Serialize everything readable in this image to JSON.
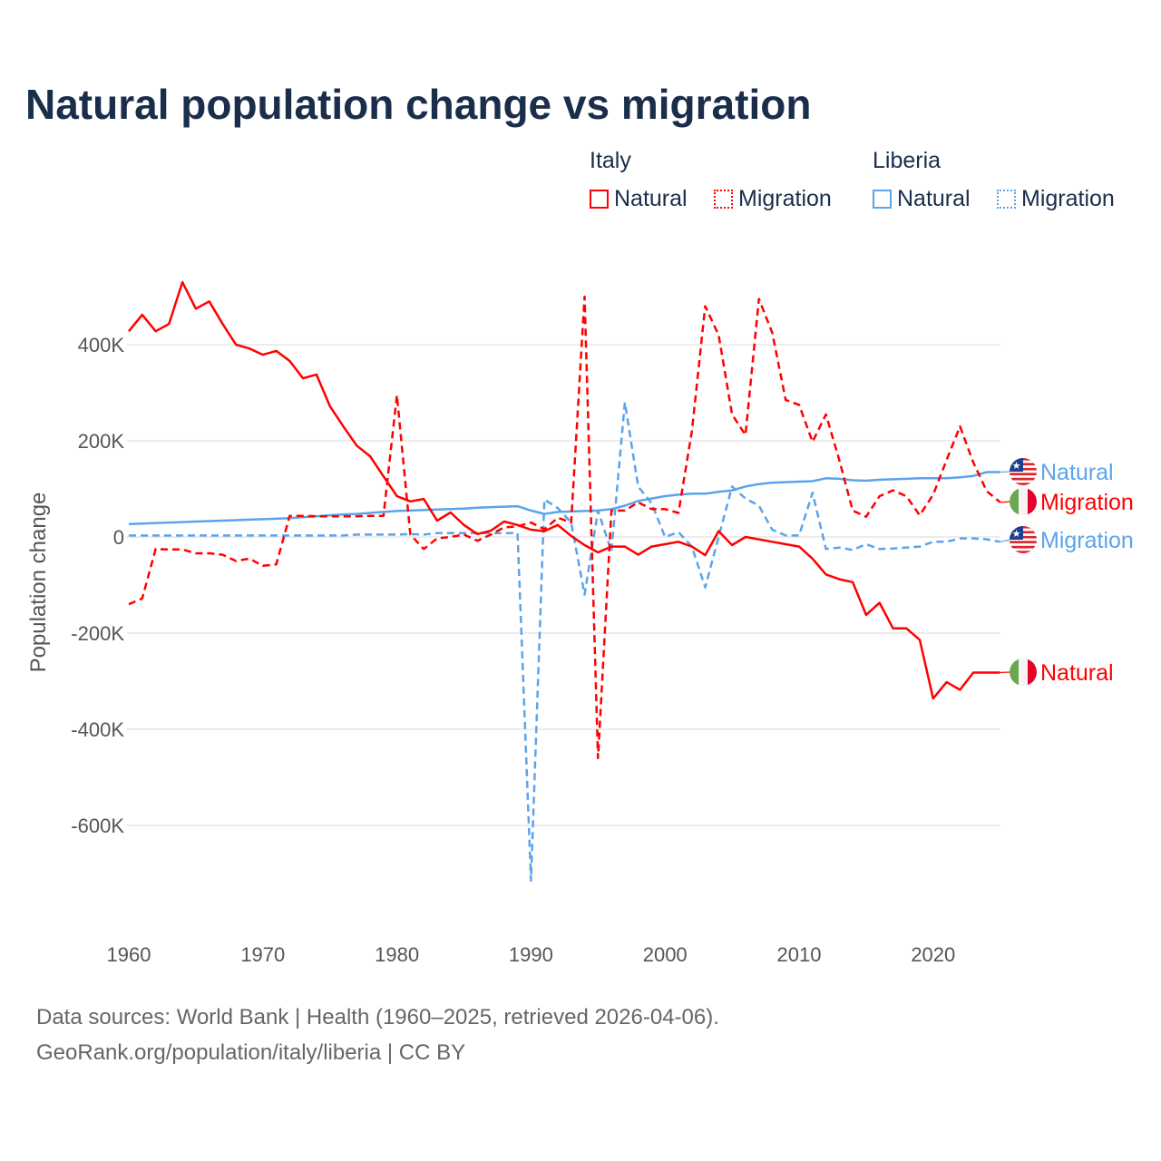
{
  "title": "Natural population change vs migration",
  "legend": {
    "groups": [
      {
        "name": "Italy",
        "items": [
          {
            "label": "Natural",
            "style": "solid"
          },
          {
            "label": "Migration",
            "style": "dotted"
          }
        ],
        "color": "#ff0000"
      },
      {
        "name": "Liberia",
        "items": [
          {
            "label": "Natural",
            "style": "solid"
          },
          {
            "label": "Migration",
            "style": "dotted"
          }
        ],
        "color": "#5aa4ec"
      }
    ]
  },
  "footer": {
    "line1": "Data sources: World Bank | Health (1960–2025, retrieved 2026-04-06).",
    "line2": "GeoRank.org/population/italy/liberia | CC BY"
  },
  "chart_data": {
    "type": "line",
    "title": "Natural population change vs migration",
    "xlabel": "",
    "ylabel": "Population change",
    "xlim": [
      1960,
      2025
    ],
    "ylim": [
      -750,
      550
    ],
    "y_unit": "thousands",
    "x_ticks": [
      1960,
      1970,
      1980,
      1990,
      2000,
      2010,
      2020
    ],
    "y_ticks": [
      {
        "v": 400,
        "label": "400K"
      },
      {
        "v": 200,
        "label": "200K"
      },
      {
        "v": 0,
        "label": "0"
      },
      {
        "v": -200,
        "label": "-200K"
      },
      {
        "v": -400,
        "label": "-400K"
      },
      {
        "v": -600,
        "label": "-600K"
      }
    ],
    "grid": true,
    "x": [
      1960,
      1961,
      1962,
      1963,
      1964,
      1965,
      1966,
      1967,
      1968,
      1969,
      1970,
      1971,
      1972,
      1973,
      1974,
      1975,
      1976,
      1977,
      1978,
      1979,
      1980,
      1981,
      1982,
      1983,
      1984,
      1985,
      1986,
      1987,
      1988,
      1989,
      1990,
      1991,
      1992,
      1993,
      1994,
      1995,
      1996,
      1997,
      1998,
      1999,
      2000,
      2001,
      2002,
      2003,
      2004,
      2005,
      2006,
      2007,
      2008,
      2009,
      2010,
      2011,
      2012,
      2013,
      2014,
      2015,
      2016,
      2017,
      2018,
      2019,
      2020,
      2021,
      2022,
      2023,
      2024,
      2025
    ],
    "series": [
      {
        "name": "Italy Natural",
        "end_label": "Natural",
        "flag": "italy",
        "color": "#ff0000",
        "dashed": false,
        "values": [
          428,
          462,
          428,
          443,
          530,
          475,
          490,
          443,
          400,
          392,
          379,
          387,
          366,
          330,
          338,
          272,
          230,
          190,
          168,
          126,
          85,
          74,
          79,
          34,
          51,
          25,
          6,
          13,
          32,
          25,
          15,
          12,
          25,
          2,
          -17,
          -32,
          -20,
          -20,
          -37,
          -20,
          -15,
          -10,
          -20,
          -38,
          12,
          -17,
          0,
          -5,
          -10,
          -15,
          -20,
          -45,
          -78,
          -88,
          -94,
          -162,
          -137,
          -190,
          -190,
          -214,
          -336,
          -302,
          -318,
          -282,
          -282,
          -282
        ]
      },
      {
        "name": "Italy Migration",
        "end_label": "Migration",
        "flag": "italy",
        "color": "#ff0000",
        "dashed": true,
        "values": [
          -140,
          -128,
          -25,
          -26,
          -26,
          -34,
          -34,
          -37,
          -50,
          -45,
          -60,
          -57,
          44,
          44,
          43,
          43,
          43,
          43,
          44,
          44,
          295,
          5,
          -25,
          -3,
          0,
          5,
          -8,
          5,
          20,
          22,
          30,
          16,
          40,
          30,
          500,
          -460,
          55,
          55,
          72,
          58,
          58,
          50,
          220,
          480,
          420,
          255,
          212,
          495,
          425,
          285,
          275,
          198,
          255,
          160,
          55,
          42,
          85,
          97,
          85,
          45,
          88,
          160,
          230,
          155,
          95,
          72
        ]
      },
      {
        "name": "Liberia Natural",
        "end_label": "Natural",
        "flag": "liberia",
        "color": "#5aa4ec",
        "dashed": false,
        "values": [
          27,
          28,
          29,
          30,
          31,
          32,
          33,
          34,
          35,
          36,
          37,
          38,
          39,
          41,
          43,
          45,
          47,
          48,
          50,
          52,
          54,
          55,
          56,
          57,
          58,
          59,
          61,
          62,
          63,
          64,
          55,
          48,
          52,
          53,
          54,
          55,
          58,
          65,
          75,
          80,
          85,
          88,
          90,
          90,
          94,
          97,
          105,
          110,
          113,
          114,
          115,
          116,
          122,
          121,
          118,
          117,
          119,
          120,
          121,
          122,
          122,
          122,
          124,
          127,
          135,
          135
        ]
      },
      {
        "name": "Liberia Migration",
        "end_label": "Migration",
        "flag": "liberia",
        "color": "#5aa4ec",
        "dashed": true,
        "values": [
          3,
          3,
          3,
          3,
          3,
          3,
          3,
          3,
          3,
          3,
          3,
          3,
          3,
          3,
          3,
          3,
          3,
          5,
          5,
          5,
          5,
          6,
          5,
          8,
          8,
          8,
          8,
          8,
          8,
          8,
          -715,
          78,
          60,
          30,
          -120,
          55,
          -30,
          280,
          105,
          70,
          0,
          10,
          -20,
          -105,
          0,
          105,
          80,
          65,
          15,
          3,
          3,
          92,
          -25,
          -22,
          -27,
          -15,
          -25,
          -24,
          -22,
          -20,
          -10,
          -10,
          -3,
          -3,
          -5,
          -10
        ]
      }
    ]
  }
}
